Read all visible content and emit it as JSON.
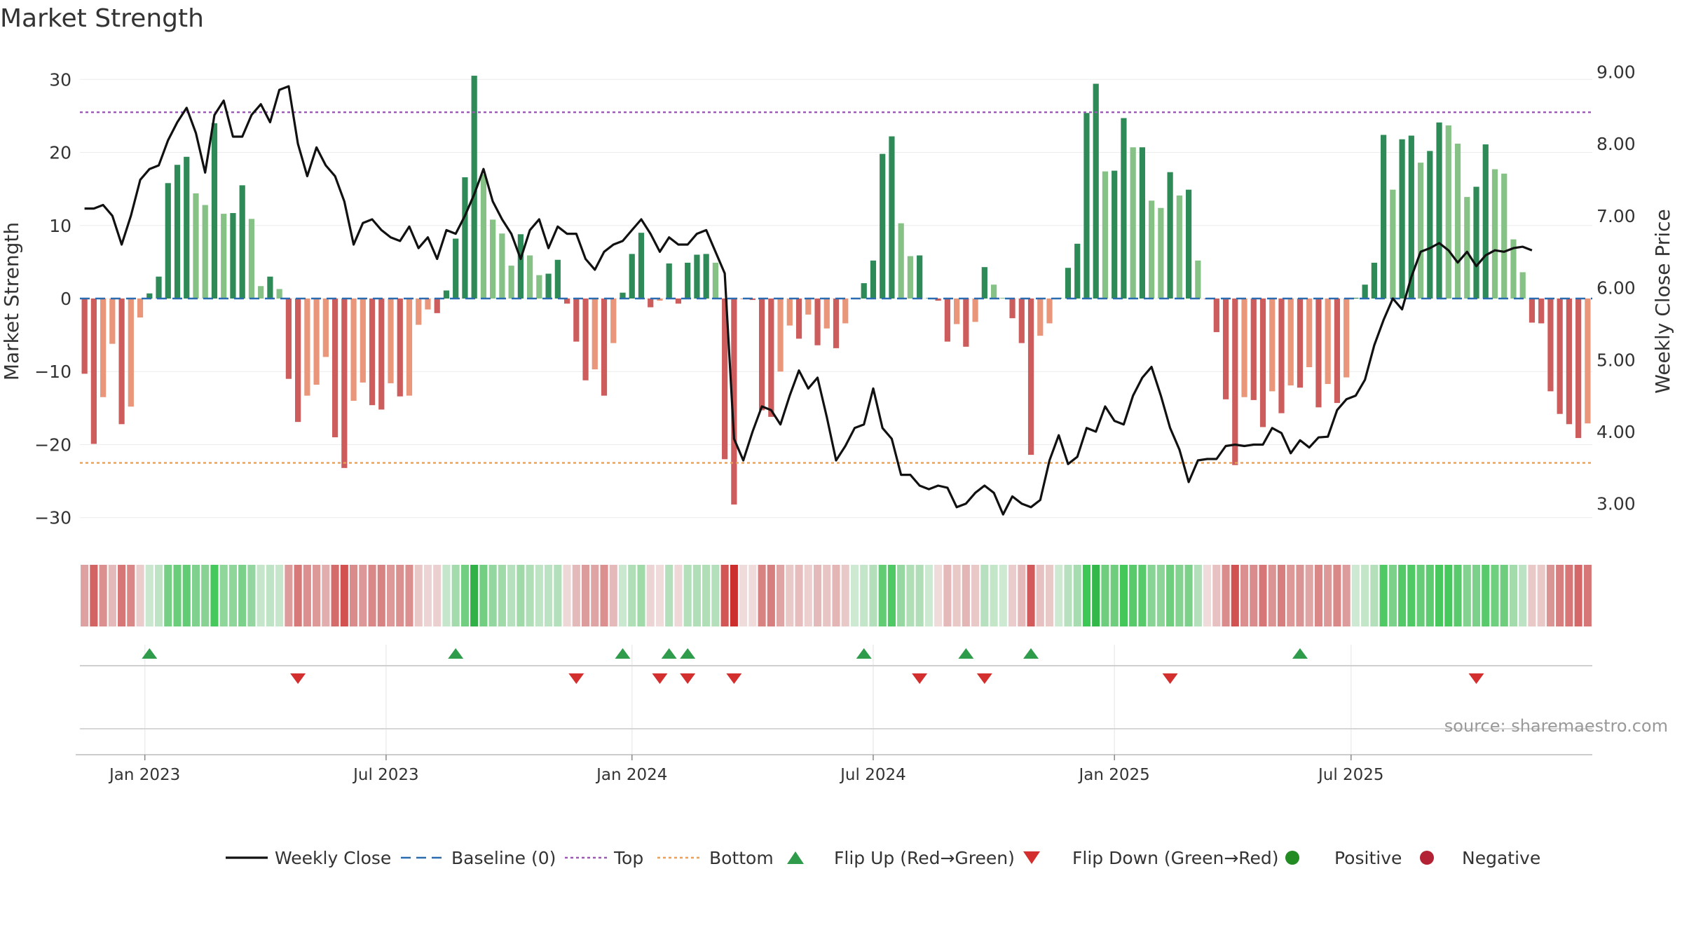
{
  "chart_data": {
    "type": "bar",
    "title": "Market Strength",
    "source": "source: sharemaestro.com",
    "ylabel_left": "Market Strength",
    "ylabel_right": "Weekly Close Price",
    "ylim_left": [
      -33,
      33
    ],
    "ylim_right": [
      2.5,
      9.2
    ],
    "left_ticks": [
      30,
      20,
      10,
      0,
      -10,
      -20,
      -30
    ],
    "left_tick_labels": [
      "30",
      "20",
      "10",
      "0",
      "−10",
      "−20",
      "−30"
    ],
    "right_ticks": [
      9,
      8,
      7,
      6,
      5,
      4,
      3
    ],
    "right_tick_labels": [
      "9.00",
      "8.00",
      "7.00",
      "6.00",
      "5.00",
      "4.00",
      "3.00"
    ],
    "x_tick_positions": [
      7,
      33,
      59.5,
      85.5,
      111.5,
      137
    ],
    "x_tick_labels": [
      "Jan 2023",
      "Jul 2023",
      "Jan 2024",
      "Jul 2024",
      "Jan 2025",
      "Jul 2025"
    ],
    "top_line": 25.5,
    "bottom_line": -22.5,
    "strength": [
      -10.3,
      -19.9,
      -13.5,
      -6.2,
      -17.2,
      -14.8,
      -2.6,
      0.7,
      3,
      15.8,
      18.3,
      19.4,
      14.4,
      12.8,
      24,
      11.6,
      11.7,
      15.5,
      10.9,
      1.7,
      3,
      1.3,
      -11,
      -16.9,
      -13.3,
      -11.8,
      -8,
      -19,
      -23.2,
      -14,
      -11.5,
      -14.6,
      -15.2,
      -11.6,
      -13.4,
      -13.3,
      -3.6,
      -1.5,
      -2,
      1.1,
      8.2,
      16.6,
      30.5,
      17,
      10.8,
      8.9,
      4.5,
      8.8,
      5.9,
      3.2,
      3.4,
      5.3,
      -0.7,
      -5.9,
      -11.2,
      -9.7,
      -13.3,
      -6.1,
      0.8,
      6.1,
      9,
      -1.2,
      -0.3,
      4.8,
      -0.7,
      4.9,
      6,
      6.1,
      4.9,
      -22,
      -28.2,
      -0.1,
      -0.2,
      -15.3,
      -16.2,
      -10,
      -3.7,
      -5.5,
      -2.2,
      -6.4,
      -4.1,
      -6.8,
      -3.4,
      0.1,
      2.1,
      5.2,
      19.8,
      22.2,
      10.3,
      5.8,
      5.9,
      0.1,
      -0.3,
      -5.9,
      -3.5,
      -6.6,
      -3.2,
      4.3,
      1.9,
      0.1,
      -2.7,
      -6.1,
      -21.4,
      -5.1,
      -3.4,
      0.1,
      4.2,
      7.5,
      25.4,
      29.4,
      17.4,
      17.5,
      24.7,
      20.7,
      20.7,
      13.4,
      12.4,
      17.3,
      14.1,
      14.9,
      5.2,
      -0.1,
      -4.6,
      -13.8,
      -22.8,
      -13.5,
      -13.9,
      -17.6,
      -12.7,
      -15.7,
      -11.9,
      -12.2,
      -9.4,
      -14.9,
      -11.7,
      -14.3,
      -10.8,
      0.1,
      1.9,
      4.9,
      22.4,
      14.9,
      21.8,
      22.3,
      18.6,
      20.2,
      24.1,
      23.7,
      21.2,
      13.9,
      15.3,
      21.1,
      17.7,
      17.1,
      8.1,
      3.6,
      -3.3,
      -3.4,
      -12.7,
      -15.8,
      -17.2,
      -19.1,
      -17.1
    ],
    "close": [
      7.1,
      7.1,
      7.15,
      7.0,
      6.6,
      7.0,
      7.5,
      7.65,
      7.7,
      8.05,
      8.3,
      8.5,
      8.15,
      7.6,
      8.4,
      8.6,
      8.1,
      8.1,
      8.4,
      8.55,
      8.3,
      8.75,
      8.8,
      8.0,
      7.55,
      7.95,
      7.7,
      7.55,
      7.2,
      6.6,
      6.9,
      6.95,
      6.8,
      6.7,
      6.65,
      6.85,
      6.55,
      6.7,
      6.4,
      6.8,
      6.75,
      7.0,
      7.3,
      7.65,
      7.2,
      6.95,
      6.75,
      6.4,
      6.8,
      6.95,
      6.55,
      6.85,
      6.75,
      6.75,
      6.4,
      6.25,
      6.5,
      6.6,
      6.65,
      6.8,
      6.95,
      6.75,
      6.5,
      6.7,
      6.6,
      6.6,
      6.75,
      6.8,
      6.5,
      6.2,
      3.9,
      3.6,
      4.0,
      4.35,
      4.3,
      4.1,
      4.5,
      4.85,
      4.6,
      4.75,
      4.2,
      3.6,
      3.8,
      4.05,
      4.1,
      4.6,
      4.05,
      3.9,
      3.4,
      3.4,
      3.25,
      3.2,
      3.25,
      3.22,
      2.95,
      3.0,
      3.15,
      3.25,
      3.15,
      2.85,
      3.1,
      3.0,
      2.95,
      3.05,
      3.6,
      3.95,
      3.55,
      3.65,
      4.05,
      4.0,
      4.35,
      4.15,
      4.1,
      4.5,
      4.75,
      4.9,
      4.5,
      4.05,
      3.75,
      3.3,
      3.6,
      3.62,
      3.62,
      3.8,
      3.82,
      3.8,
      3.82,
      3.82,
      4.05,
      3.98,
      3.7,
      3.88,
      3.78,
      3.92,
      3.93,
      4.3,
      4.45,
      4.5,
      4.72,
      5.2,
      5.55,
      5.85,
      5.7,
      6.15,
      6.5,
      6.55,
      6.62,
      6.52,
      6.35,
      6.5,
      6.3,
      6.45,
      6.52,
      6.5,
      6.55,
      6.57,
      6.52
    ],
    "strip_series": "market strength heat strip",
    "flips_up": [
      7,
      40,
      58,
      63,
      65,
      84,
      95,
      102,
      131
    ],
    "flips_down": [
      23,
      53,
      62,
      65,
      70,
      90,
      97,
      117,
      150
    ],
    "legend": [
      {
        "label": "Weekly Close",
        "kind": "line",
        "color": "#111111"
      },
      {
        "label": "Baseline (0)",
        "kind": "dash",
        "color": "#2b6cb0"
      },
      {
        "label": "Top",
        "kind": "dot",
        "color": "#9b59b6"
      },
      {
        "label": "Bottom",
        "kind": "dot",
        "color": "#e8a05a"
      },
      {
        "label": "Flip Up (Red→Green)",
        "kind": "tri-up",
        "color": "#2e9c4a"
      },
      {
        "label": "Flip Down (Green→Red)",
        "kind": "tri-down",
        "color": "#d32f2f"
      },
      {
        "label": "Positive",
        "kind": "circle",
        "color": "#228b22"
      },
      {
        "label": "Negative",
        "kind": "circle",
        "color": "#b22234"
      }
    ]
  },
  "colors": {
    "pos_dark": "#2e8b57",
    "pos_light": "#86c286",
    "neg_dark": "#cd5c5c",
    "neg_light": "#e9967a",
    "grid": "#ececec",
    "top_line": "#9b59b6",
    "bottom_line": "#e8a05a",
    "baseline": "#2b6cb0",
    "line": "#111111"
  }
}
